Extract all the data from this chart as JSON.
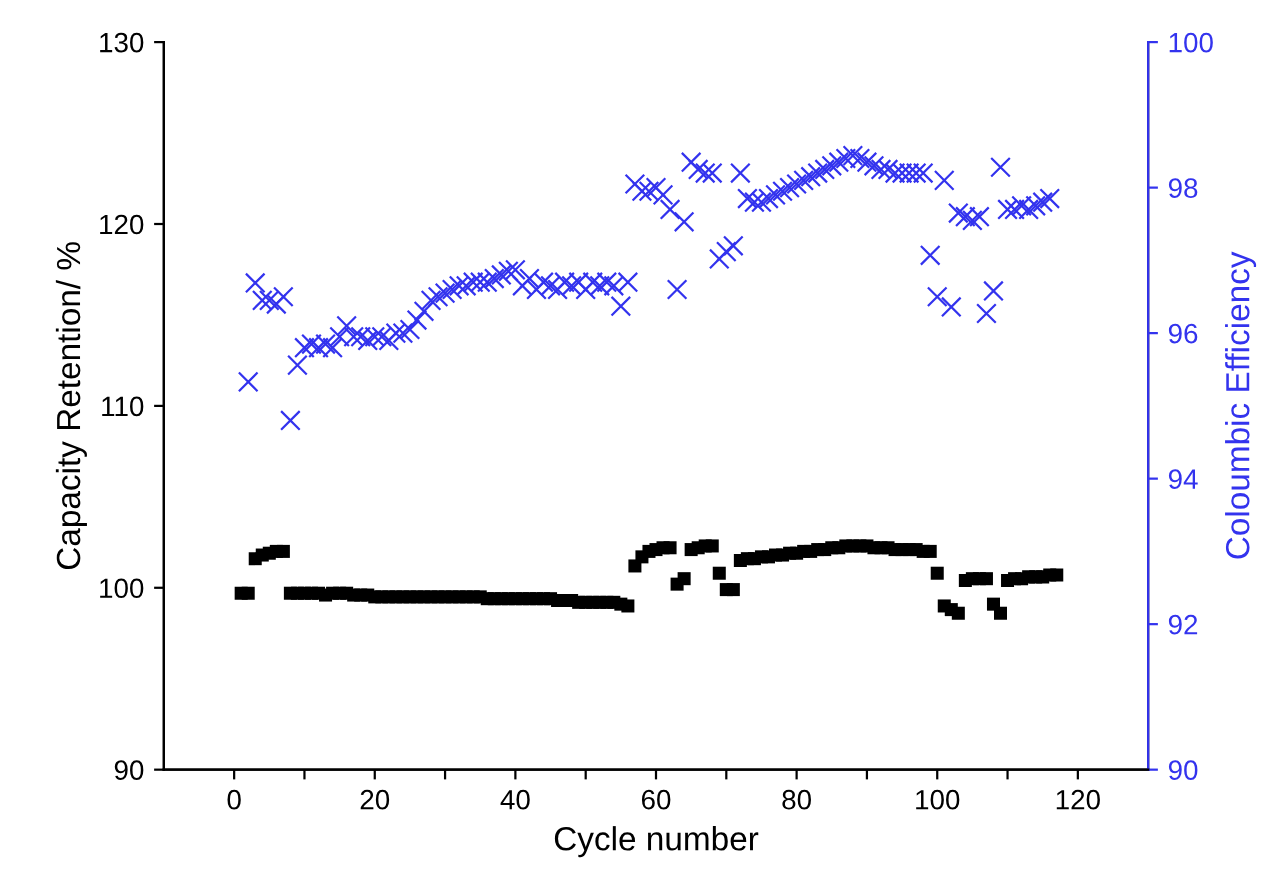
{
  "chart_data": {
    "type": "scatter",
    "xlabel": "Cycle number",
    "ylabel": "Capacity Retention/ %",
    "y2label": "Coloumbic Efficiency",
    "xlim": [
      -10,
      130
    ],
    "xticks": [
      0,
      {
        "value": 10,
        "label": null
      },
      20,
      {
        "value": 30,
        "label": null
      },
      40,
      {
        "value": 50,
        "label": null
      },
      60,
      {
        "value": 70,
        "label": null
      },
      80,
      {
        "value": 90,
        "label": null
      },
      100,
      {
        "value": 110,
        "label": null
      },
      120
    ],
    "ylim": [
      90,
      130
    ],
    "yticks": [
      90,
      100,
      110,
      120,
      130
    ],
    "y2lim": [
      90,
      100
    ],
    "y2ticks": [
      90,
      92,
      94,
      96,
      98,
      100
    ],
    "grid": false,
    "legend": false,
    "series": [
      {
        "color": "#000000",
        "marker": "square",
        "x": [
          1,
          2,
          3,
          4,
          5,
          6,
          7,
          8,
          9,
          10,
          11,
          12,
          13,
          14,
          15,
          16,
          17,
          18,
          19,
          20,
          21,
          22,
          23,
          24,
          25,
          26,
          27,
          28,
          29,
          30,
          31,
          32,
          33,
          34,
          35,
          36,
          37,
          38,
          39,
          40,
          41,
          42,
          43,
          44,
          45,
          46,
          47,
          48,
          49,
          50,
          51,
          52,
          53,
          54,
          55,
          56,
          57,
          58,
          59,
          60,
          61,
          62,
          63,
          64,
          65,
          66,
          67,
          68,
          69,
          70,
          71,
          72,
          73,
          74,
          75,
          76,
          77,
          78,
          79,
          80,
          81,
          82,
          83,
          84,
          85,
          86,
          87,
          88,
          89,
          90,
          91,
          92,
          93,
          94,
          95,
          96,
          97,
          98,
          99,
          100,
          101,
          102,
          103,
          104,
          105,
          106,
          107,
          108,
          109,
          110,
          111,
          112,
          113,
          114,
          115,
          116,
          117
        ],
        "values": [
          99.7,
          99.7,
          101.6,
          101.8,
          101.9,
          102.0,
          102.0,
          99.7,
          99.7,
          99.7,
          99.7,
          99.7,
          99.6,
          99.7,
          99.7,
          99.7,
          99.6,
          99.6,
          99.6,
          99.5,
          99.5,
          99.5,
          99.5,
          99.5,
          99.5,
          99.5,
          99.5,
          99.5,
          99.5,
          99.5,
          99.5,
          99.5,
          99.5,
          99.5,
          99.5,
          99.4,
          99.4,
          99.4,
          99.4,
          99.4,
          99.4,
          99.4,
          99.4,
          99.4,
          99.4,
          99.3,
          99.3,
          99.3,
          99.2,
          99.2,
          99.2,
          99.2,
          99.2,
          99.2,
          99.1,
          99.0,
          101.2,
          101.7,
          102.0,
          102.1,
          102.2,
          102.2,
          100.2,
          100.5,
          102.1,
          102.2,
          102.3,
          102.3,
          100.8,
          99.9,
          99.9,
          101.5,
          101.6,
          101.6,
          101.7,
          101.7,
          101.8,
          101.8,
          101.9,
          101.9,
          102.0,
          102.0,
          102.1,
          102.1,
          102.2,
          102.2,
          102.3,
          102.3,
          102.3,
          102.3,
          102.2,
          102.2,
          102.2,
          102.1,
          102.1,
          102.1,
          102.1,
          102.0,
          102.0,
          100.8,
          99.0,
          98.8,
          98.6,
          100.4,
          100.5,
          100.5,
          100.5,
          99.1,
          98.6,
          100.4,
          100.5,
          100.5,
          100.6,
          100.6,
          100.6,
          100.7,
          100.7
        ]
      },
      {
        "color": "#3333ee",
        "marker": "cross",
        "axis": "y2",
        "x": [
          2,
          3,
          4,
          5,
          6,
          7,
          8,
          9,
          10,
          11,
          12,
          13,
          14,
          15,
          16,
          17,
          18,
          19,
          20,
          21,
          22,
          23,
          24,
          25,
          26,
          27,
          28,
          29,
          30,
          31,
          32,
          33,
          34,
          35,
          36,
          37,
          38,
          39,
          40,
          41,
          42,
          43,
          44,
          45,
          46,
          47,
          48,
          49,
          50,
          51,
          52,
          53,
          54,
          55,
          56,
          57,
          58,
          59,
          60,
          61,
          62,
          63,
          64,
          65,
          66,
          67,
          68,
          69,
          70,
          71,
          72,
          73,
          74,
          75,
          76,
          77,
          78,
          79,
          80,
          81,
          82,
          83,
          84,
          85,
          86,
          87,
          88,
          89,
          90,
          91,
          92,
          93,
          94,
          95,
          96,
          97,
          98,
          99,
          100,
          101,
          102,
          103,
          104,
          105,
          106,
          107,
          108,
          109,
          110,
          111,
          112,
          113,
          114,
          115,
          116
        ],
        "values": [
          95.33,
          96.69,
          96.45,
          96.45,
          96.4,
          96.5,
          94.8,
          95.56,
          95.8,
          95.85,
          95.8,
          95.85,
          95.8,
          95.95,
          96.1,
          95.95,
          95.95,
          95.9,
          95.95,
          95.95,
          95.9,
          96.0,
          96.0,
          96.05,
          96.18,
          96.3,
          96.45,
          96.5,
          96.55,
          96.6,
          96.65,
          96.65,
          96.7,
          96.7,
          96.7,
          96.75,
          96.8,
          96.85,
          96.87,
          96.65,
          96.75,
          96.6,
          96.7,
          96.65,
          96.6,
          96.7,
          96.65,
          96.7,
          96.6,
          96.7,
          96.65,
          96.7,
          96.65,
          96.37,
          96.7,
          98.05,
          97.95,
          97.95,
          98.0,
          97.9,
          97.7,
          96.6,
          97.53,
          98.35,
          98.25,
          98.2,
          98.2,
          97.02,
          97.12,
          97.2,
          98.2,
          97.85,
          97.8,
          97.8,
          97.85,
          97.9,
          97.95,
          98.0,
          98.05,
          98.1,
          98.15,
          98.2,
          98.25,
          98.3,
          98.35,
          98.4,
          98.44,
          98.4,
          98.35,
          98.3,
          98.25,
          98.25,
          98.2,
          98.2,
          98.2,
          98.2,
          98.2,
          97.07,
          96.5,
          98.1,
          96.36,
          97.65,
          97.6,
          97.55,
          97.6,
          96.27,
          96.58,
          98.28,
          97.7,
          97.7,
          97.75,
          97.7,
          97.75,
          97.8,
          97.85
        ]
      }
    ]
  }
}
